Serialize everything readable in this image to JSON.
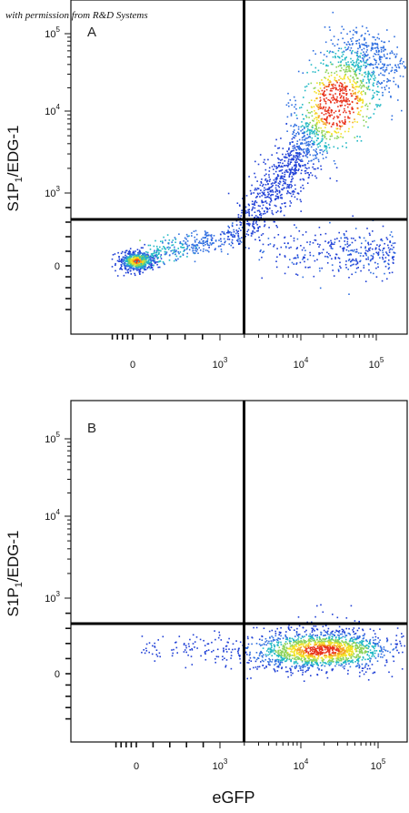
{
  "credit": "with permission from R&D Systems",
  "x_axis_label": "eGFP",
  "colors": {
    "axis": "#111111",
    "gate": "#000000",
    "density_low": "#1f3fd6",
    "density_mid": "#21b8c4",
    "density_high_mid": "#f2e224",
    "density_high": "#e8321c"
  },
  "chart_data": [
    {
      "type": "scatter",
      "plot_type": "flow cytometry density dot plot",
      "panel_label": "A",
      "xlabel": "",
      "ylabel_main": "S1P",
      "ylabel_sub": "1",
      "ylabel_rest": "/EDG-1",
      "scale": "biexponential (log above ~10^3)",
      "x_ticks": [
        {
          "base": "0",
          "exp": ""
        },
        {
          "base": "10",
          "exp": "3"
        },
        {
          "base": "10",
          "exp": "4"
        },
        {
          "base": "10",
          "exp": "5"
        }
      ],
      "y_ticks": [
        {
          "base": "0",
          "exp": ""
        },
        {
          "base": "10",
          "exp": "3"
        },
        {
          "base": "10",
          "exp": "4"
        },
        {
          "base": "10",
          "exp": "5"
        }
      ],
      "quadrant_gate": {
        "x": 2000,
        "y": 500
      },
      "populations": [
        {
          "description": "double-negative cluster",
          "x_center": 0,
          "y_center": 0,
          "n": 650,
          "density": "high"
        },
        {
          "description": "transition tail",
          "x_from": 200,
          "x_to": 2000,
          "y_from": 0,
          "y_to": 300,
          "n": 350,
          "density": "mid"
        },
        {
          "description": "eGFP+ S1P1+ diagonal population",
          "x_from": 2000,
          "x_to": 80000,
          "y_from": 500,
          "y_to": 50000,
          "n": 1800,
          "density": "high",
          "peak": {
            "x": 30000,
            "y": 12000
          }
        },
        {
          "description": "eGFP+ S1P1- lower population",
          "x_from": 2000,
          "x_to": 100000,
          "y_center": 200,
          "n": 350,
          "density": "low"
        }
      ]
    },
    {
      "type": "scatter",
      "plot_type": "flow cytometry density dot plot",
      "panel_label": "B",
      "xlabel": "eGFP",
      "ylabel_main": "S1P",
      "ylabel_sub": "1",
      "ylabel_rest": "/EDG-1",
      "scale": "biexponential (log above ~10^3)",
      "x_ticks": [
        {
          "base": "0",
          "exp": ""
        },
        {
          "base": "10",
          "exp": "3"
        },
        {
          "base": "10",
          "exp": "4"
        },
        {
          "base": "10",
          "exp": "5"
        }
      ],
      "y_ticks": [
        {
          "base": "0",
          "exp": ""
        },
        {
          "base": "10",
          "exp": "3"
        },
        {
          "base": "10",
          "exp": "4"
        },
        {
          "base": "10",
          "exp": "5"
        }
      ],
      "quadrant_gate": {
        "x": 2000,
        "y": 500
      },
      "populations": [
        {
          "description": "eGFP+ S1P1- population",
          "x_from": 2000,
          "x_to": 90000,
          "y_center": 100,
          "n": 1600,
          "density": "high",
          "peak": {
            "x": 25000,
            "y": 100
          }
        },
        {
          "description": "eGFP- sparse events",
          "x_from": 0,
          "x_to": 2000,
          "y_center": 150,
          "n": 90,
          "density": "low"
        },
        {
          "description": "scattered high events",
          "x_from": 8000,
          "x_to": 60000,
          "y_from": 500,
          "y_to": 1000,
          "n": 25,
          "density": "low"
        }
      ]
    }
  ]
}
